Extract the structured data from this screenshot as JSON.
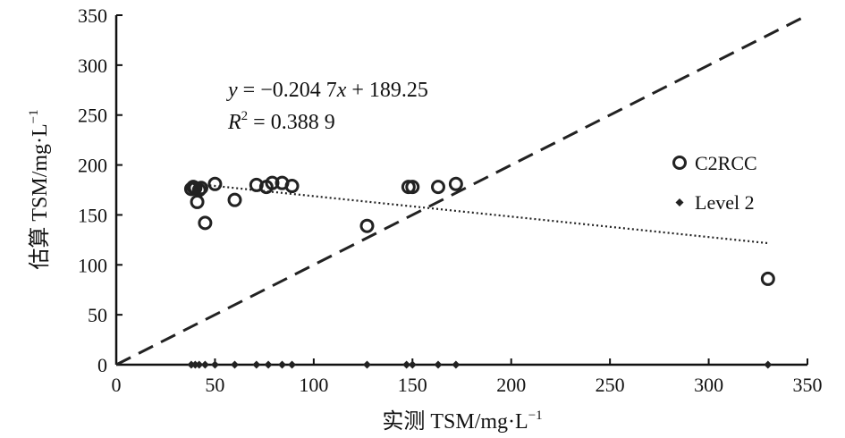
{
  "chart_data": {
    "type": "scatter",
    "xlabel": "实测 TSM/mg·L",
    "xlabel_sup": "−1",
    "ylabel": "估算 TSM/mg·L",
    "ylabel_sup": "−1",
    "xlim": [
      0,
      350
    ],
    "ylim": [
      0,
      350
    ],
    "xticks": [
      0,
      50,
      100,
      150,
      200,
      250,
      300,
      350
    ],
    "yticks": [
      0,
      50,
      100,
      150,
      200,
      250,
      300,
      350
    ],
    "grid": false,
    "legend_position": "right",
    "annotation": {
      "equation_y": "y",
      "equation_eq": " = −0.204 7",
      "equation_x": "x",
      "equation_rest": " + 189.25",
      "r2_r": "R",
      "r2_sup": "2",
      "r2_rest": " = 0.388 9"
    },
    "series": [
      {
        "name": "C2RCC",
        "marker": "open-circle",
        "points": [
          [
            38,
            176
          ],
          [
            39,
            178
          ],
          [
            40,
            177
          ],
          [
            41,
            163
          ],
          [
            42,
            175
          ],
          [
            43,
            177
          ],
          [
            45,
            142
          ],
          [
            50,
            181
          ],
          [
            60,
            165
          ],
          [
            71,
            180
          ],
          [
            76,
            178
          ],
          [
            79,
            182
          ],
          [
            84,
            182
          ],
          [
            89,
            179
          ],
          [
            127,
            139
          ],
          [
            148,
            178
          ],
          [
            150,
            178
          ],
          [
            163,
            178
          ],
          [
            172,
            181
          ],
          [
            330,
            86
          ]
        ]
      },
      {
        "name": "Level 2",
        "marker": "filled-diamond",
        "points": [
          [
            38,
            0
          ],
          [
            40,
            0
          ],
          [
            42,
            0
          ],
          [
            45,
            0
          ],
          [
            50,
            0
          ],
          [
            60,
            0
          ],
          [
            71,
            0
          ],
          [
            77,
            0
          ],
          [
            84,
            0
          ],
          [
            89,
            0
          ],
          [
            127,
            0
          ],
          [
            147,
            0
          ],
          [
            150,
            0
          ],
          [
            163,
            0
          ],
          [
            172,
            0
          ],
          [
            330,
            0
          ]
        ]
      }
    ],
    "reference_lines": [
      {
        "kind": "1:1 line",
        "style": "dashed",
        "from": [
          0,
          0
        ],
        "to": [
          350,
          350
        ]
      },
      {
        "kind": "regression",
        "style": "dotted",
        "slope": -0.2047,
        "intercept": 189.25,
        "x_range": [
          45,
          330
        ]
      }
    ],
    "colors": {
      "marks": "#222222",
      "axis": "#111111"
    }
  }
}
